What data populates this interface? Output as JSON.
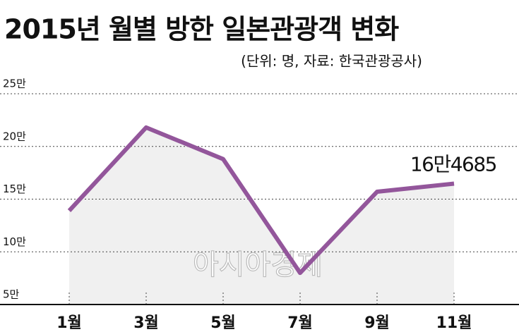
{
  "chart_data": {
    "type": "line",
    "title": "2015년 월별 방한 일본관광객 변화",
    "subtitle": "(단위: 명, 자료: 한국관광공사)",
    "watermark": "아시아경제",
    "categories": [
      "1월",
      "3월",
      "5월",
      "7월",
      "9월",
      "11월"
    ],
    "series": [
      {
        "name": "방한 일본관광객",
        "color": "#93569b",
        "values": [
          139000,
          218000,
          188000,
          80000,
          157000,
          164685
        ],
        "value_labels": [
          null,
          null,
          null,
          null,
          null,
          "16만4685"
        ]
      }
    ],
    "ylim": [
      50000,
      250000
    ],
    "yticks": [
      {
        "value": 50000,
        "label": "5만"
      },
      {
        "value": 100000,
        "label": "10만"
      },
      {
        "value": 150000,
        "label": "15만"
      },
      {
        "value": 200000,
        "label": "20만"
      },
      {
        "value": 250000,
        "label": "25만"
      }
    ],
    "grid": true,
    "area_fill": "#f0f0f0"
  }
}
